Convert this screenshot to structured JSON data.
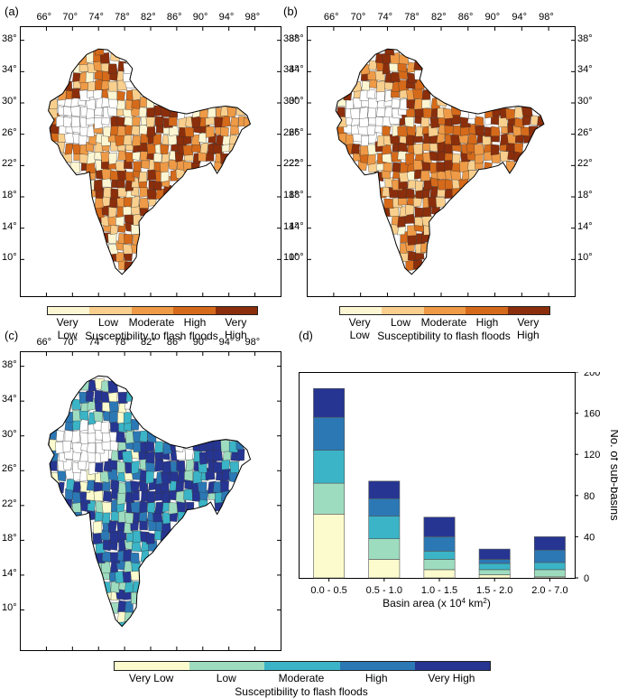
{
  "panels": {
    "a": "(a)",
    "b": "(b)",
    "c": "(c)",
    "d": "(d)"
  },
  "map": {
    "lon_ticks": [
      "66°",
      "70°",
      "74°",
      "78°",
      "82°",
      "86°",
      "90°",
      "94°",
      "98°"
    ],
    "lat_ticks": [
      "38°",
      "34°",
      "30°",
      "26°",
      "22°",
      "18°",
      "14°",
      "10°"
    ]
  },
  "colorbars": {
    "orange": {
      "classes": [
        "Very Low",
        "Low",
        "Moderate",
        "High",
        "Very High"
      ],
      "colors": [
        "#fdf6d2",
        "#f9cf8e",
        "#ee9a46",
        "#d56a1a",
        "#8b2e0b"
      ],
      "title": "Susceptibility to flash floods"
    },
    "blue": {
      "classes": [
        "Very Low",
        "Low",
        "Moderate",
        "High",
        "Very High"
      ],
      "colors": [
        "#fbfbcd",
        "#9edcbf",
        "#3ab4c6",
        "#2b78b5",
        "#263592"
      ],
      "title": "Susceptibility to flash floods"
    }
  },
  "chart_data": {
    "type": "bar",
    "stacked": true,
    "categories": [
      "0.0 - 0.5",
      "0.5 - 1.0",
      "1.0 - 1.5",
      "1.5 - 2.0",
      "2.0 - 7.0"
    ],
    "series": [
      {
        "name": "Very Low",
        "color": "#fbfbcd",
        "values": [
          62,
          18,
          8,
          3,
          1
        ]
      },
      {
        "name": "Low",
        "color": "#9edcbf",
        "values": [
          30,
          20,
          10,
          5,
          7
        ]
      },
      {
        "name": "Moderate",
        "color": "#3ab4c6",
        "values": [
          32,
          22,
          8,
          6,
          7
        ]
      },
      {
        "name": "High",
        "color": "#2b78b5",
        "values": [
          32,
          17,
          14,
          4,
          12
        ]
      },
      {
        "name": "Very High",
        "color": "#263592",
        "values": [
          28,
          17,
          19,
          10,
          13
        ]
      }
    ],
    "ylim": [
      0,
      200
    ],
    "yticks": [
      0,
      40,
      80,
      120,
      160,
      200
    ],
    "xlabel": "Basin area (x 10",
    "xlabel_sup": "4",
    "xlabel_unit": " km",
    "xlabel_sup2": "2",
    "xlabel_end": ")",
    "ylabel": "No. of sub-basins"
  }
}
